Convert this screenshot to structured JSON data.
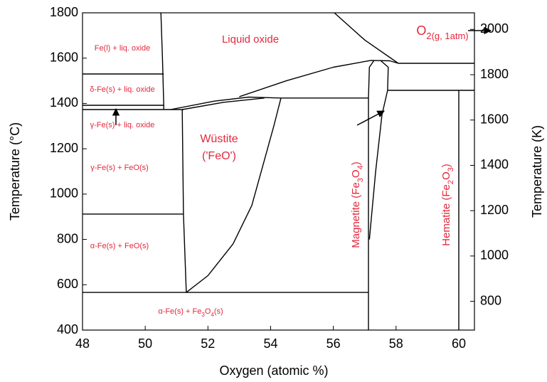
{
  "chart_data": {
    "type": "phase-diagram",
    "xlabel": "Oxygen (atomic %)",
    "ylabel": "Temperature (°C)",
    "y2label": "Temperature (K)",
    "xlim": [
      48,
      60.5
    ],
    "xticks": [
      48,
      50,
      52,
      54,
      56,
      58,
      60
    ],
    "ylim": [
      400,
      1800
    ],
    "yticks": [
      400,
      600,
      800,
      1000,
      1200,
      1400,
      1600,
      1800
    ],
    "y2lim": [
      673.15,
      2073.15
    ],
    "y2ticks": [
      800,
      1000,
      1200,
      1400,
      1600,
      1800,
      2000
    ],
    "annotation_color": "#e3283c",
    "annotations": [
      "Liquid oxide",
      "Fe(l) + liq. oxide",
      "δ-Fe(s) + liq. oxide",
      "γ-Fe(s) + liq. oxide",
      "γ-Fe(s) + FeO(s)",
      "α-Fe(s) + FeO(s)",
      "α-Fe(s) + Fe3O4(s)",
      "Wüstite",
      "('FeO')",
      "Magnetite (Fe3O4)",
      "Hematite (Fe2O3)",
      "O2(g, 1atm)"
    ],
    "series": [
      {
        "color": "#000000",
        "x": [
          50.5,
          50.55,
          50.59,
          50.59
        ],
        "values": [
          1800,
          1600,
          1392,
          1373
        ]
      },
      {
        "color": "#000000",
        "x": [
          48,
          50.59
        ],
        "values": [
          1530,
          1530
        ]
      },
      {
        "color": "#000000",
        "x": [
          48,
          50.59
        ],
        "values": [
          1392,
          1392
        ]
      },
      {
        "color": "#000000",
        "x": [
          48,
          51.22
        ],
        "values": [
          1373,
          1373
        ]
      },
      {
        "color": "#000000",
        "x": [
          48,
          51.22
        ],
        "values": [
          912,
          912
        ]
      },
      {
        "color": "#000000",
        "x": [
          48,
          57.12
        ],
        "values": [
          566,
          566
        ]
      },
      {
        "color": "#000000",
        "x": [
          51.18,
          51.22,
          51.31
        ],
        "values": [
          1373,
          912,
          566
        ]
      },
      {
        "color": "#000000",
        "x": [
          51.31,
          52.0,
          52.8,
          53.4,
          53.8,
          54.1,
          54.33
        ],
        "values": [
          566,
          640,
          780,
          950,
          1150,
          1300,
          1424
        ]
      },
      {
        "color": "#000000",
        "x": [
          50.81,
          52.2,
          53.3,
          54.33
        ],
        "values": [
          1373,
          1410,
          1428,
          1424
        ]
      },
      {
        "color": "#000000",
        "x": [
          51.18,
          52.5,
          53.8
        ],
        "values": [
          1373,
          1405,
          1424
        ]
      },
      {
        "color": "#000000",
        "x": [
          54.33,
          57.12
        ],
        "values": [
          1424,
          1424
        ]
      },
      {
        "color": "#000000",
        "x": [
          53.0,
          54.5,
          56.0,
          57.2,
          57.8,
          58.07
        ],
        "values": [
          1430,
          1500,
          1560,
          1590,
          1588,
          1577
        ]
      },
      {
        "color": "#000000",
        "x": [
          56.03,
          57.0,
          58.07
        ],
        "values": [
          1800,
          1680,
          1577
        ]
      },
      {
        "color": "#000000",
        "x": [
          58.07,
          60.5
        ],
        "values": [
          1577,
          1577
        ]
      },
      {
        "color": "#000000",
        "x": [
          57.73,
          60.5
        ],
        "values": [
          1458,
          1458
        ]
      },
      {
        "color": "#000000",
        "x": [
          60,
          60
        ],
        "values": [
          400,
          1458
        ]
      },
      {
        "color": "#000000",
        "x": [
          57.12,
          57.12,
          57.15,
          57.3
        ],
        "values": [
          400,
          1424,
          1560,
          1590
        ]
      },
      {
        "color": "#000000",
        "x": [
          57.15,
          57.35,
          57.55,
          57.73,
          57.75,
          57.5
        ],
        "values": [
          800,
          1100,
          1350,
          1458,
          1560,
          1590
        ]
      }
    ]
  }
}
